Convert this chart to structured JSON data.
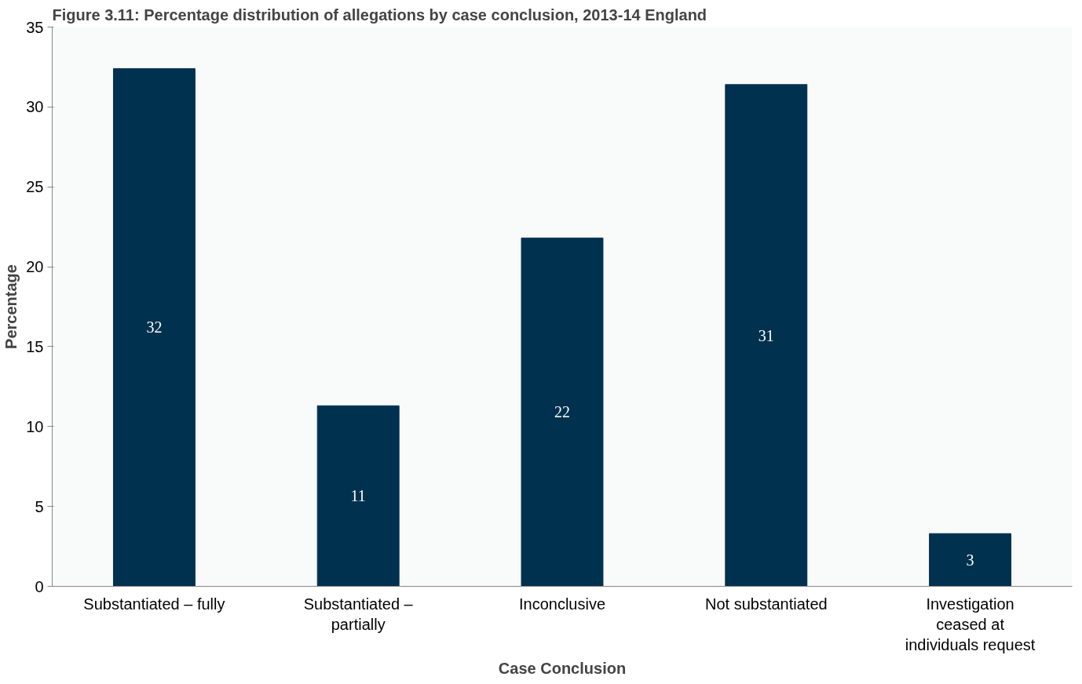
{
  "chart_data": {
    "type": "bar",
    "title": "Figure 3.11: Percentage distribution of allegations by case conclusion, 2013-14 England",
    "xlabel": "Case Conclusion",
    "ylabel": "Percentage",
    "categories": [
      "Substantiated – fully",
      "Substantiated –\npartially",
      "Inconclusive",
      "Not substantiated",
      "Investigation\nceased at\nindividuals request"
    ],
    "values": [
      32.4,
      11.3,
      21.8,
      31.4,
      3.3
    ],
    "value_labels": [
      "32",
      "11",
      "22",
      "31",
      "3"
    ],
    "color": "#00314f",
    "ylim": [
      0,
      35
    ],
    "yticks": [
      0,
      5,
      10,
      15,
      20,
      25,
      30,
      35
    ],
    "grid": false
  }
}
